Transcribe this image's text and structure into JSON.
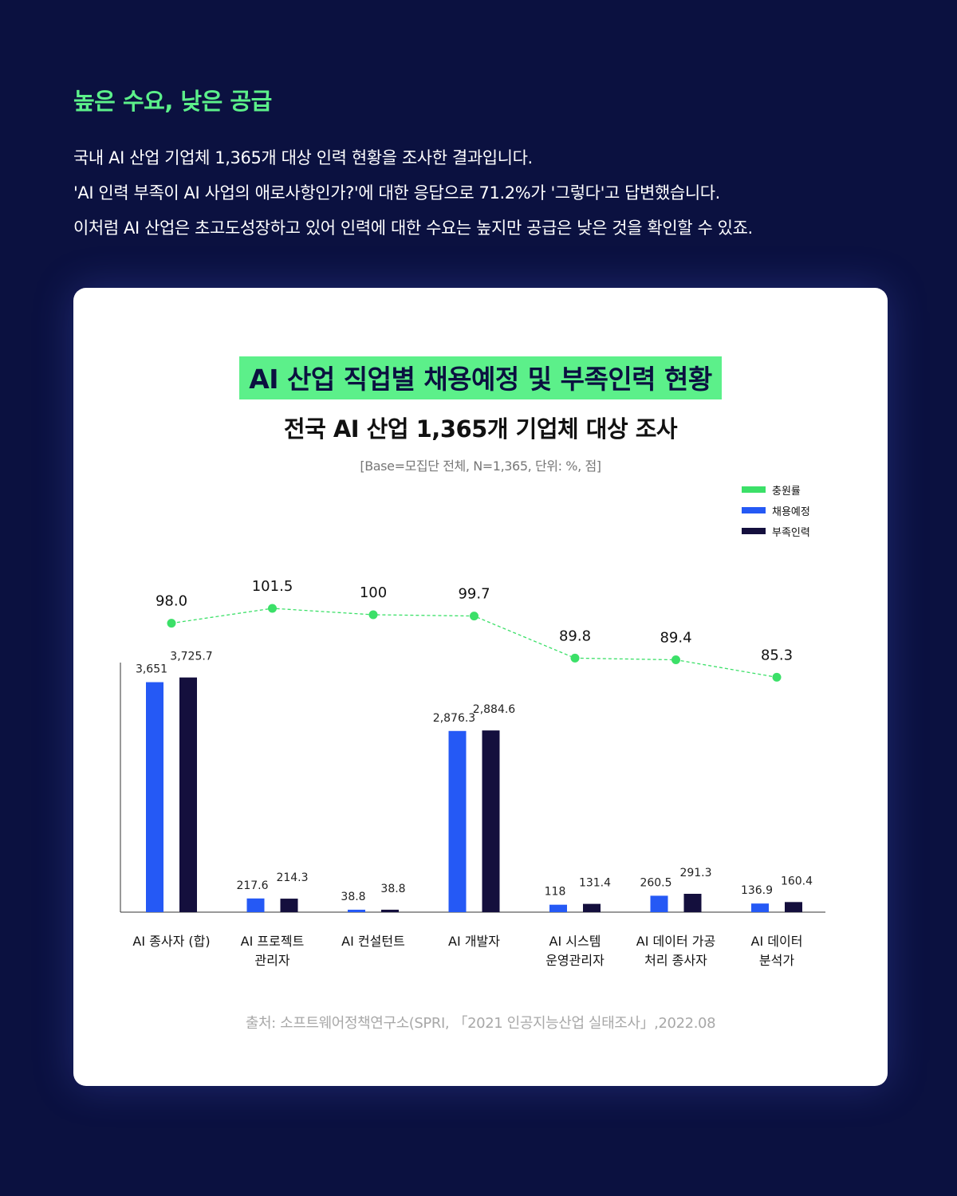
{
  "header": {
    "title": "높은 수요, 낮은 공급",
    "lines": [
      "국내 AI 산업 기업체 1,365개 대상 인력 현황을 조사한 결과입니다.",
      "'AI 인력 부족이 AI 사업의 애로사항인가?'에 대한 응답으로 71.2%가 '그렇다'고 답변했습니다.",
      "이처럼 AI 산업은 초고도성장하고 있어 인력에 대한 수요는 높지만 공급은 낮은 것을 확인할 수 있죠."
    ]
  },
  "chart": {
    "title": "AI 산업 직업별 채용예정 및 부족인력 현황",
    "subtitle": "전국 AI 산업 1,365개 기업체 대상 조사",
    "base_note": "[Base=모집단 전체, N=1,365, 단위: %, 점]",
    "source": "출처: 소프트웨어정책연구소(SPRI, 「2021 인공지능산업 실태조사」,2022.08"
  },
  "colors": {
    "background": "#0b1140",
    "accent_green": "#5cf08a",
    "planned_blue": "#2559f5",
    "shortage_navy": "#140f3d",
    "line_green": "#3be068"
  },
  "chart_data": {
    "type": "bar",
    "categories": [
      [
        "AI 종사자 (합)"
      ],
      [
        "AI 프로젝트",
        "관리자"
      ],
      [
        "AI 컨설턴트"
      ],
      [
        "AI 개발자"
      ],
      [
        "AI 시스템",
        "운영관리자"
      ],
      [
        "AI 데이터 가공",
        "처리 종사자"
      ],
      [
        "AI 데이터",
        "분석가"
      ]
    ],
    "series": [
      {
        "name": "채용예정",
        "kind": "bar",
        "color": "#2559f5",
        "values": [
          3651,
          217.6,
          38.8,
          2876.3,
          118,
          260.5,
          136.9
        ],
        "labels": [
          "3,651",
          "217.6",
          "38.8",
          "2,876.3",
          "118",
          "260.5",
          "136.9"
        ]
      },
      {
        "name": "부족인력",
        "kind": "bar",
        "color": "#140f3d",
        "values": [
          3725.7,
          214.3,
          38.8,
          2884.6,
          131.4,
          291.3,
          160.4
        ],
        "labels": [
          "3,725.7",
          "214.3",
          "38.8",
          "2,884.6",
          "131.4",
          "291.3",
          "160.4"
        ]
      },
      {
        "name": "충원률",
        "kind": "line",
        "color": "#3be068",
        "values": [
          98.0,
          101.5,
          100,
          99.7,
          89.8,
          89.4,
          85.3
        ],
        "labels": [
          "98.0",
          "101.5",
          "100",
          "99.7",
          "89.8",
          "89.4",
          "85.3"
        ]
      }
    ],
    "legend": {
      "position": "top-right",
      "order": [
        "충원률",
        "채용예정",
        "부족인력"
      ]
    },
    "bar_axis_max": 4000,
    "line_axis_range": [
      60,
      105
    ],
    "grid": false
  }
}
